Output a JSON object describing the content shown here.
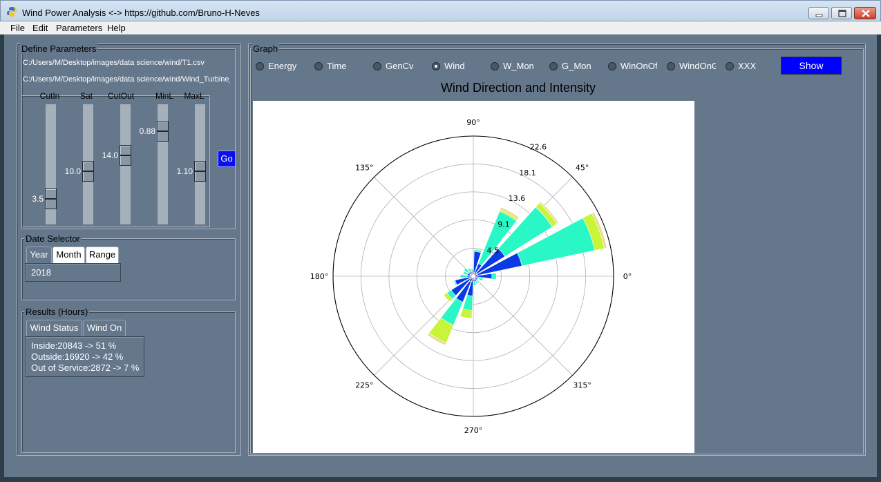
{
  "window": {
    "title": "Wind Power Analysis <-> https://github.com/Bruno-H-Neves",
    "icon": "python-icon"
  },
  "menu": [
    "File",
    "Edit",
    "Parameters",
    "Help"
  ],
  "define_parameters": {
    "label": "Define Parameters",
    "file_path_1": "C:/Users/M/Desktop/images/data science/wind/T1.csv",
    "file_path_2": "C:/Users/M/Desktop/images/data science/wind/Wind_Turbine_I",
    "sliders": [
      {
        "label": "CutIn",
        "value": "3.5",
        "level": 0.15
      },
      {
        "label": "Sat",
        "value": "10.0",
        "level": 0.43
      },
      {
        "label": "CutOut",
        "value": "14.0",
        "level": 0.59
      },
      {
        "label": "MinL",
        "value": "0.88",
        "level": 0.83
      },
      {
        "label": "MaxL",
        "value": "1.10",
        "level": 0.43
      }
    ],
    "go_label": "Go"
  },
  "date_selector": {
    "label": "Date Selector",
    "tabs": [
      "Year",
      "Month",
      "Range"
    ],
    "active_tab": "Year",
    "value": "2018"
  },
  "results": {
    "label": "Results (Hours)",
    "tabs": [
      "Wind Status",
      "Wind On"
    ],
    "active_tab": "Wind Status",
    "lines": [
      "Inside:20843 -> 51 %",
      "Outside:16920 -> 42 %",
      "Out of Service:2872 -> 7 %"
    ]
  },
  "graph": {
    "label": "Graph",
    "options": [
      "Energy",
      "Time",
      "GenCv",
      "Wind",
      "W_Mon",
      "G_Mon",
      "WinOnOff",
      "WindOnG",
      "XXX"
    ],
    "selected": "Wind",
    "show_label": "Show"
  },
  "chart_data": {
    "type": "polar-bar",
    "title": "Wind Direction and Intensity",
    "angle_labels": [
      "0°",
      "45°",
      "90°",
      "135°",
      "180°",
      "225°",
      "270°",
      "315°"
    ],
    "radial_ticks": [
      "4.5",
      "9.1",
      "13.6",
      "18.1",
      "22.6"
    ],
    "radial_max": 22.6,
    "bin_colors": [
      "#00005a",
      "#0a3ae6",
      "#29f7c6",
      "#c8f53a",
      "#f0d890"
    ],
    "series": [
      {
        "direction": 20,
        "segments": [
          0.8,
          8.0,
          20.0,
          21.6,
          22.0
        ]
      },
      {
        "direction": 40,
        "segments": [
          0.7,
          6.0,
          15.0,
          15.9,
          16.2
        ]
      },
      {
        "direction": 60,
        "segments": [
          0.6,
          2.2,
          11.3,
          11.6,
          12.0
        ]
      },
      {
        "direction": 80,
        "segments": [
          0.6,
          4.0,
          4.3,
          4.4
        ]
      },
      {
        "direction": 100,
        "segments": [
          0.5,
          0.8,
          1.2
        ]
      },
      {
        "direction": 120,
        "segments": [
          0.5,
          0.9,
          1.4
        ]
      },
      {
        "direction": 140,
        "segments": [
          0.5,
          0.9,
          1.8
        ]
      },
      {
        "direction": 160,
        "segments": [
          0.5,
          1.0,
          1.7
        ]
      },
      {
        "direction": 180,
        "segments": [
          0.5,
          1.0,
          2.1
        ]
      },
      {
        "direction": 200,
        "segments": [
          0.6,
          3.0,
          3.2
        ]
      },
      {
        "direction": 220,
        "segments": [
          0.6,
          4.2,
          5.0,
          5.6
        ]
      },
      {
        "direction": 240,
        "segments": [
          1.0,
          4.5,
          8.5,
          11.6,
          12.0
        ]
      },
      {
        "direction": 260,
        "segments": [
          0.8,
          3.2,
          5.5,
          6.8
        ]
      },
      {
        "direction": 280,
        "segments": [
          0.5,
          0.9,
          1.5
        ]
      },
      {
        "direction": 300,
        "segments": [
          0.5,
          0.9,
          1.3
        ]
      },
      {
        "direction": 320,
        "segments": [
          0.4,
          0.8,
          1.1
        ]
      },
      {
        "direction": 340,
        "segments": [
          0.6,
          0.9,
          1.6
        ]
      },
      {
        "direction": 360,
        "segments": [
          0.6,
          3.0,
          3.7
        ]
      }
    ]
  }
}
